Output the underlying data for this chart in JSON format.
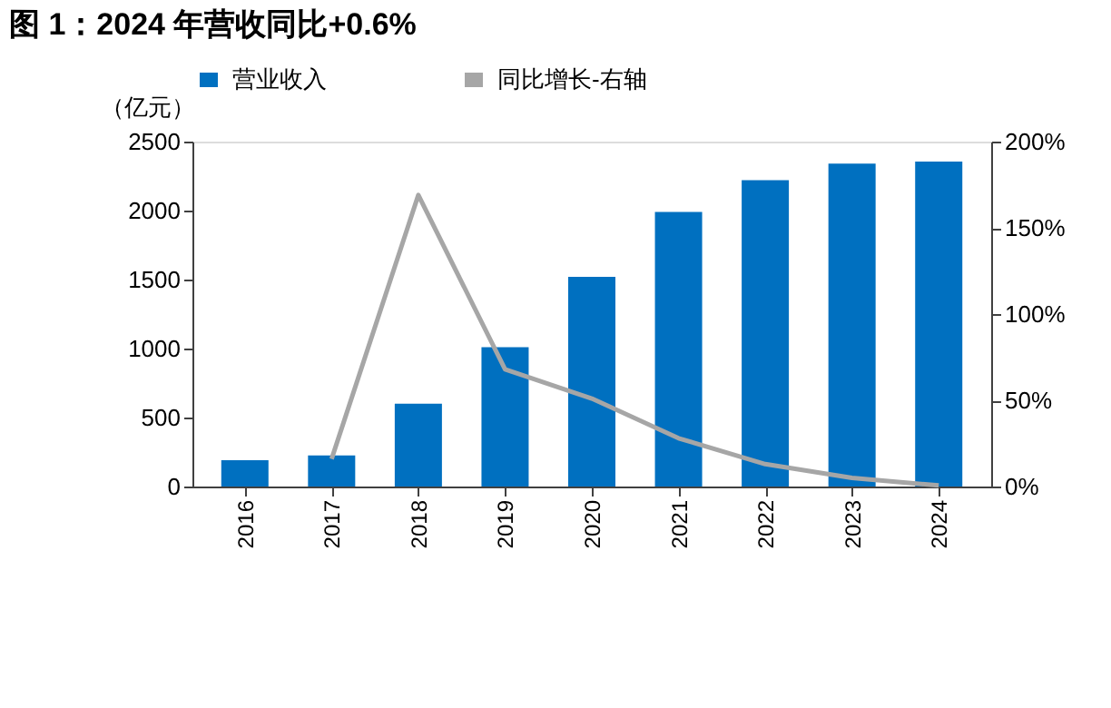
{
  "chart_data": {
    "type": "bar",
    "title": "图 1：2024 年营收同比+0.6%",
    "ylabel": "（亿元）",
    "categories": [
      "2016",
      "2017",
      "2018",
      "2019",
      "2020",
      "2021",
      "2022",
      "2023",
      "2024"
    ],
    "series": [
      {
        "name": "营业收入",
        "color": "#0070c0",
        "values": [
          190,
          225,
          600,
          1010,
          1520,
          1990,
          2220,
          2340,
          2355
        ]
      },
      {
        "name": "同比增长-右轴",
        "type": "line",
        "axis": "y2",
        "color": "#a6a6a6",
        "values": [
          null,
          16,
          169,
          68,
          51,
          28,
          13,
          5,
          0.6
        ]
      }
    ],
    "ylim": [
      0,
      2500
    ],
    "yticks": [
      0,
      500,
      1000,
      1500,
      2000,
      2500
    ],
    "y2lim": [
      0,
      200
    ],
    "y2ticks": [
      {
        "value": 0,
        "label": "0%"
      },
      {
        "value": 50,
        "label": "50%"
      },
      {
        "value": 100,
        "label": "100%"
      },
      {
        "value": 150,
        "label": "150%"
      },
      {
        "value": 200,
        "label": "200%"
      }
    ],
    "grid": false,
    "legend": "top",
    "marker": "none",
    "line_style": "solid"
  }
}
